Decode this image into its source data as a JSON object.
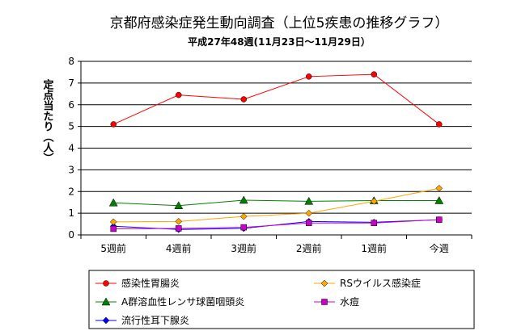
{
  "chart_data": {
    "type": "line",
    "title": "京都府感染症発生動向調査（上位5疾患の推移グラフ）",
    "subtitle": "平成27年48週(11月23日～11月29日）",
    "ylabel": "定点当たり（人）",
    "xlabel": "",
    "categories": [
      "5週前",
      "4週前",
      "3週前",
      "2週前",
      "1週前",
      "今週"
    ],
    "ylim": [
      0,
      8
    ],
    "yticks": [
      0,
      1,
      2,
      3,
      4,
      5,
      6,
      7,
      8
    ],
    "grid": true,
    "legend_position": "bottom",
    "series": [
      {
        "name": "感染性胃腸炎",
        "color": "#ff0000",
        "marker": "circle",
        "values": [
          5.1,
          6.45,
          6.25,
          7.3,
          7.4,
          5.1
        ]
      },
      {
        "name": "RSウイルス感染症",
        "color": "#ffa500",
        "marker": "diamond",
        "values": [
          0.6,
          0.62,
          0.85,
          1.0,
          1.55,
          2.15
        ]
      },
      {
        "name": "A群溶血性レンサ球菌咽頭炎",
        "color": "#008000",
        "marker": "triangle",
        "values": [
          1.48,
          1.35,
          1.6,
          1.55,
          1.58,
          1.58
        ]
      },
      {
        "name": "水痘",
        "color": "#cc00cc",
        "marker": "square",
        "values": [
          0.28,
          0.3,
          0.35,
          0.55,
          0.55,
          0.7
        ]
      },
      {
        "name": "流行性耳下腺炎",
        "color": "#0000ff",
        "marker": "diamond",
        "values": [
          0.4,
          0.25,
          0.3,
          0.62,
          0.58,
          0.7
        ]
      }
    ]
  }
}
